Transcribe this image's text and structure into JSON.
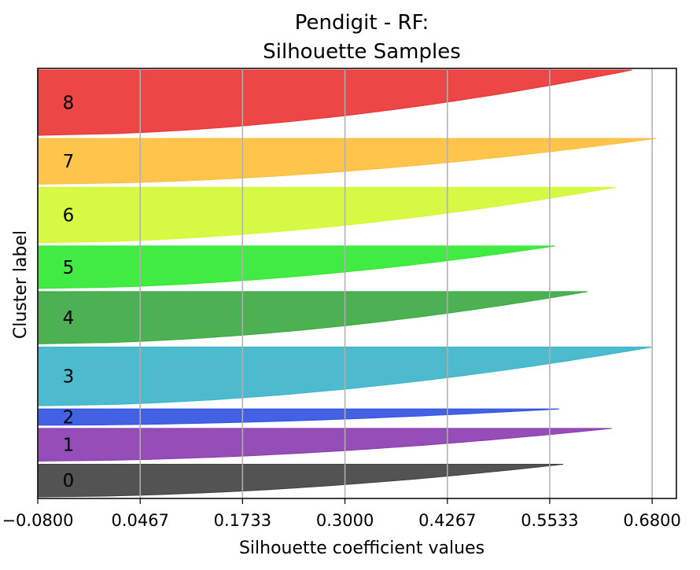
{
  "chart_data": {
    "type": "area",
    "title_line1": "Pendigit - RF:",
    "title_line2": "Silhouette Samples",
    "xlabel": "Silhouette coefficient values",
    "ylabel": "Cluster label",
    "xlim": [
      -0.08,
      0.71
    ],
    "xticks": [
      -0.08,
      0.0467,
      0.1733,
      0.3,
      0.4267,
      0.5533,
      0.68
    ],
    "xtick_labels": [
      "−0.0800",
      "0.0467",
      "0.1733",
      "0.3000",
      "0.4267",
      "0.5533",
      "0.6800"
    ],
    "grid": "x-vertical",
    "clusters": [
      {
        "label": "0",
        "color": "#404040",
        "min": -0.08,
        "max": 0.57,
        "relative_size": 0.1
      },
      {
        "label": "1",
        "color": "#8a3ab0",
        "min": -0.08,
        "max": 0.63,
        "relative_size": 0.1
      },
      {
        "label": "2",
        "color": "#2e50e0",
        "min": -0.08,
        "max": 0.565,
        "relative_size": 0.05
      },
      {
        "label": "3",
        "color": "#3ab4c8",
        "min": -0.08,
        "max": 0.68,
        "relative_size": 0.18
      },
      {
        "label": "4",
        "color": "#38a840",
        "min": -0.08,
        "max": 0.6,
        "relative_size": 0.16
      },
      {
        "label": "5",
        "color": "#2ee830",
        "min": -0.08,
        "max": 0.56,
        "relative_size": 0.13
      },
      {
        "label": "6",
        "color": "#d4f830",
        "min": -0.08,
        "max": 0.635,
        "relative_size": 0.17
      },
      {
        "label": "7",
        "color": "#ffbe38",
        "min": -0.08,
        "max": 0.685,
        "relative_size": 0.14
      },
      {
        "label": "8",
        "color": "#ea3232",
        "min": -0.08,
        "max": 0.655,
        "relative_size": 0.2
      }
    ]
  }
}
